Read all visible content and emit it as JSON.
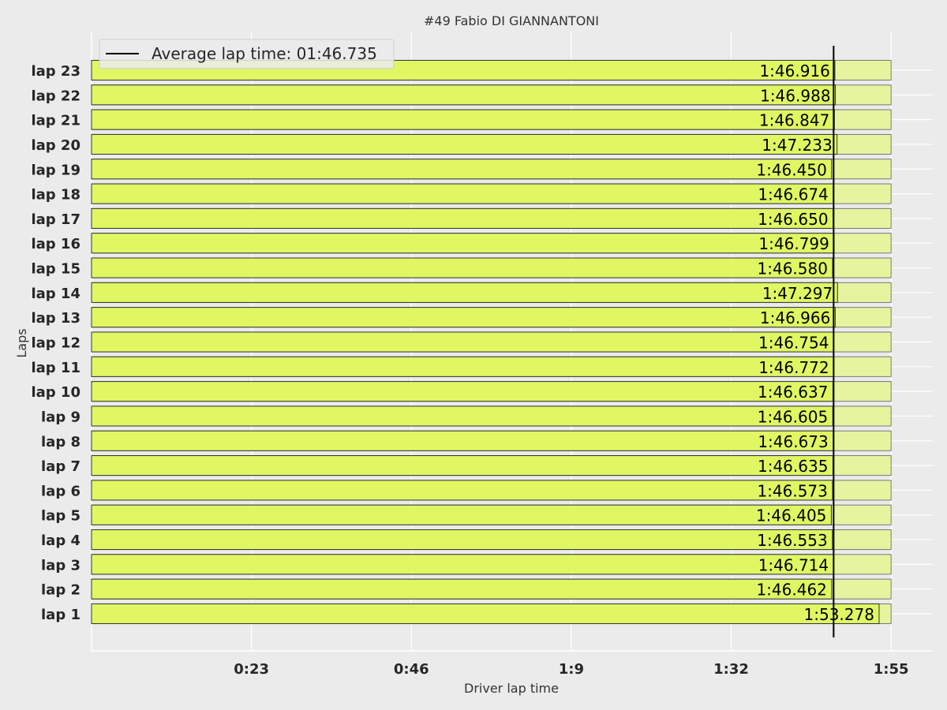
{
  "chart_data": {
    "type": "bar",
    "orientation": "horizontal",
    "title": "#49  Fabio DI GIANNANTONI",
    "xlabel": "Driver lap time",
    "ylabel": "Laps",
    "categories": [
      "lap 1",
      "lap 2",
      "lap 3",
      "lap 4",
      "lap 5",
      "lap 6",
      "lap 7",
      "lap 8",
      "lap 9",
      "lap 10",
      "lap 11",
      "lap 12",
      "lap 13",
      "lap 14",
      "lap 15",
      "lap 16",
      "lap 17",
      "lap 18",
      "lap 19",
      "lap 20",
      "lap 21",
      "lap 22",
      "lap 23"
    ],
    "values_seconds": [
      113.278,
      106.462,
      106.714,
      106.553,
      106.405,
      106.573,
      106.635,
      106.673,
      106.605,
      106.637,
      106.772,
      106.754,
      106.966,
      107.297,
      106.58,
      106.799,
      106.65,
      106.674,
      106.45,
      107.233,
      106.847,
      106.988,
      106.916
    ],
    "data_labels": [
      "1:53.278",
      "1:46.462",
      "1:46.714",
      "1:46.553",
      "1:46.405",
      "1:46.573",
      "1:46.635",
      "1:46.673",
      "1:46.605",
      "1:46.637",
      "1:46.772",
      "1:46.754",
      "1:46.966",
      "1:47.297",
      "1:46.580",
      "1:46.799",
      "1:46.650",
      "1:46.674",
      "1:46.450",
      "1:47.233",
      "1:46.847",
      "1:46.988",
      "1:46.916"
    ],
    "background_bar_value_seconds": 115,
    "average": {
      "value_seconds": 106.735,
      "label": "Average lap time: 01:46.735"
    },
    "xticks": [
      {
        "value": 23,
        "label": "0:23"
      },
      {
        "value": 46,
        "label": "0:46"
      },
      {
        "value": 69,
        "label": "1:9"
      },
      {
        "value": 92,
        "label": "1:32"
      },
      {
        "value": 115,
        "label": "1:55"
      }
    ],
    "xlim": [
      0,
      121
    ],
    "grid": true,
    "legend_position": "top-left",
    "colors": {
      "bar": "#e0f763",
      "background_bar": "#e6f598",
      "bar_edge": "#333333",
      "average_line": "#000000",
      "plot_bg": "#ebebeb",
      "grid": "#ffffff"
    }
  }
}
